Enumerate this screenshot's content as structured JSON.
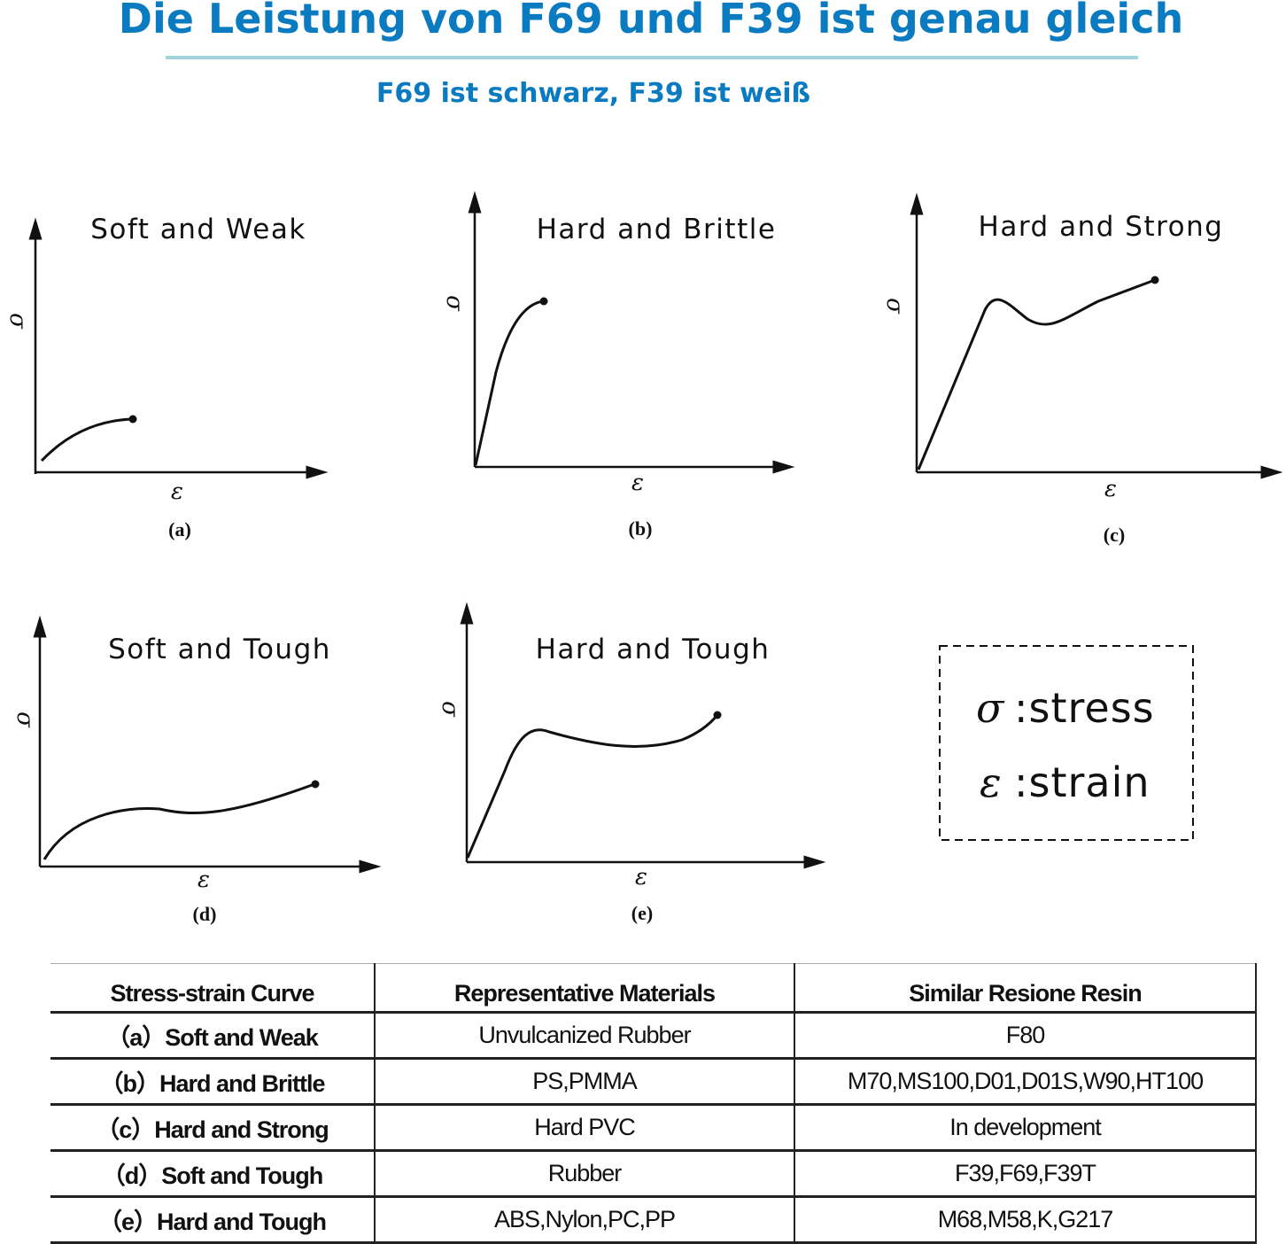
{
  "header": {
    "title": "Die Leistung von F69 und F39 ist genau gleich",
    "subtitle": "F69 ist schwarz, F39 ist weiß"
  },
  "axis_symbols": {
    "stress": "σ",
    "strain": "ε"
  },
  "panels": [
    {
      "title": "Soft and Weak",
      "label": "(a)"
    },
    {
      "title": "Hard and Brittle",
      "label": "(b)"
    },
    {
      "title": "Hard and Strong",
      "label": "(c)"
    },
    {
      "title": "Soft and Tough",
      "label": "(d)"
    },
    {
      "title": "Hard and Tough",
      "label": "(e)"
    }
  ],
  "legend": {
    "stress": ":stress",
    "strain": ":strain"
  },
  "table": {
    "headers": [
      "Stress-strain Curve",
      "Representative Materials",
      "Similar Resione Resin"
    ],
    "rows": [
      [
        "（a）Soft and Weak",
        "Unvulcanized Rubber",
        "F80"
      ],
      [
        "（b）Hard and Brittle",
        "PS,PMMA",
        "M70,MS100,D01,D01S,W90,HT100"
      ],
      [
        "（c）Hard and Strong",
        "Hard PVC",
        "In development"
      ],
      [
        "（d）Soft and Tough",
        "Rubber",
        "F39,F69,F39T"
      ],
      [
        "（e）Hard and Tough",
        "ABS,Nylon,PC,PP",
        "M68,M58,K,G217"
      ]
    ]
  },
  "colors": {
    "title": "#0a7bc0",
    "rule": "#9fd3e0"
  }
}
